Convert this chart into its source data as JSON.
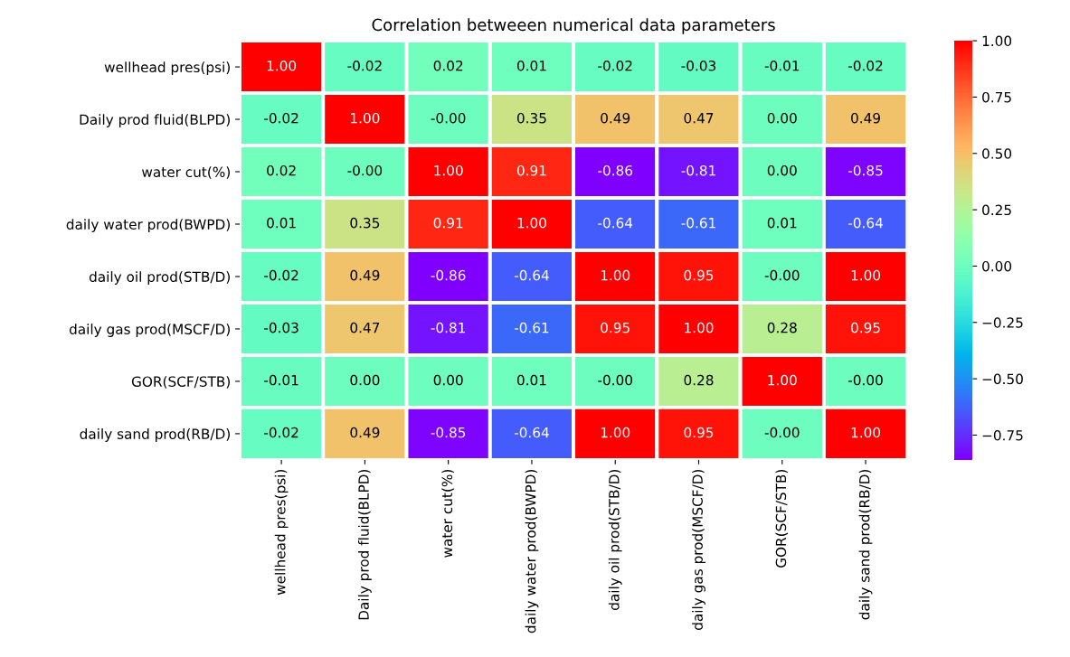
{
  "chart_data": {
    "type": "heatmap",
    "title": "Correlation betweeen numerical data parameters",
    "categories": [
      "wellhead pres(psi)",
      "Daily prod fluid(BLPD)",
      "water cut(%)",
      "daily water prod(BWPD)",
      "daily oil prod(STB/D)",
      "daily gas prod(MSCF/D)",
      "GOR(SCF/STB)",
      "daily sand prod(RB/D)"
    ],
    "y_categories": [
      "wellhead pres(psi)",
      "Daily prod fluid(BLPD)",
      "water cut(%)",
      "daily water prod(BWPD)",
      "daily oil prod(STB/D)",
      "daily gas prod(MSCF/D)",
      "GOR(SCF/STB)",
      "daily sand prod(RB/D)"
    ],
    "cells": [
      [
        1.0,
        -0.02,
        0.02,
        0.01,
        -0.02,
        -0.03,
        -0.01,
        -0.02
      ],
      [
        -0.02,
        1.0,
        0.0,
        0.35,
        0.49,
        0.47,
        0.0,
        0.49
      ],
      [
        0.02,
        0.0,
        1.0,
        0.91,
        -0.86,
        -0.81,
        0.0,
        -0.85
      ],
      [
        0.01,
        0.35,
        0.91,
        1.0,
        -0.64,
        -0.61,
        0.01,
        -0.64
      ],
      [
        -0.02,
        0.49,
        -0.86,
        -0.64,
        1.0,
        0.95,
        0.0,
        1.0
      ],
      [
        -0.03,
        0.47,
        -0.81,
        -0.61,
        0.95,
        1.0,
        0.28,
        0.95
      ],
      [
        -0.01,
        0.0,
        0.0,
        0.01,
        0.0,
        0.28,
        1.0,
        0.0
      ],
      [
        -0.02,
        0.49,
        -0.85,
        -0.64,
        1.0,
        0.95,
        0.0,
        1.0
      ]
    ],
    "cell_labels": [
      [
        "1.00",
        "-0.02",
        "0.02",
        "0.01",
        "-0.02",
        "-0.03",
        "-0.01",
        "-0.02"
      ],
      [
        "-0.02",
        "1.00",
        "-0.00",
        "0.35",
        "0.49",
        "0.47",
        "0.00",
        "0.49"
      ],
      [
        "0.02",
        "-0.00",
        "1.00",
        "0.91",
        "-0.86",
        "-0.81",
        "0.00",
        "-0.85"
      ],
      [
        "0.01",
        "0.35",
        "0.91",
        "1.00",
        "-0.64",
        "-0.61",
        "0.01",
        "-0.64"
      ],
      [
        "-0.02",
        "0.49",
        "-0.86",
        "-0.64",
        "1.00",
        "0.95",
        "-0.00",
        "1.00"
      ],
      [
        "-0.03",
        "0.47",
        "-0.81",
        "-0.61",
        "0.95",
        "1.00",
        "0.28",
        "0.95"
      ],
      [
        "-0.01",
        "0.00",
        "0.00",
        "0.01",
        "-0.00",
        "0.28",
        "1.00",
        "-0.00"
      ],
      [
        "-0.02",
        "0.49",
        "-0.85",
        "-0.64",
        "1.00",
        "0.95",
        "-0.00",
        "1.00"
      ]
    ],
    "clim": [
      -0.86,
      1.0
    ],
    "cticks": [
      {
        "value": 1.0,
        "label": "1.00"
      },
      {
        "value": 0.75,
        "label": "0.75"
      },
      {
        "value": 0.5,
        "label": "0.50"
      },
      {
        "value": 0.25,
        "label": "0.25"
      },
      {
        "value": 0.0,
        "label": "0.00"
      },
      {
        "value": -0.25,
        "label": "−0.25"
      },
      {
        "value": -0.5,
        "label": "−0.50"
      },
      {
        "value": -0.75,
        "label": "−0.75"
      }
    ]
  }
}
